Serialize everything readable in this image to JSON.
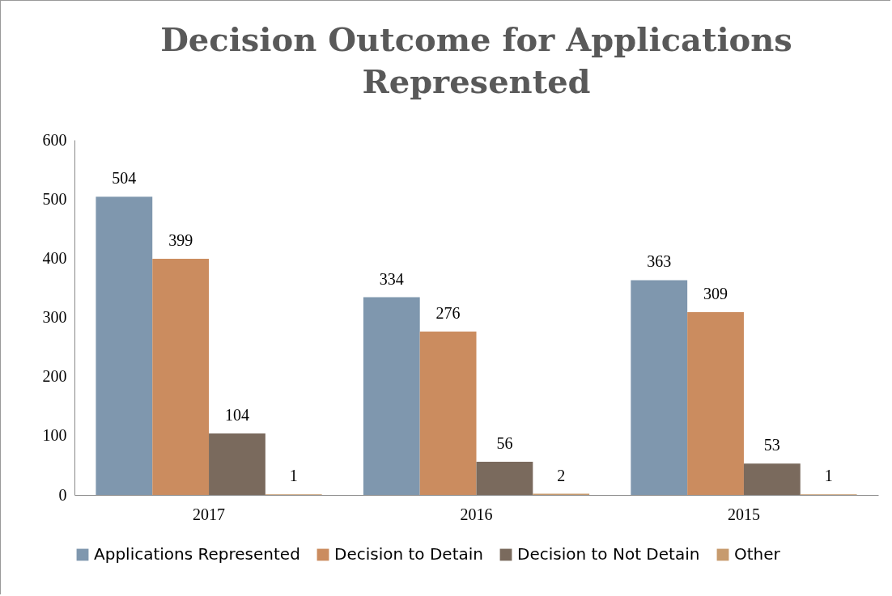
{
  "chart_data": {
    "type": "bar",
    "title": "Decision Outcome for Applications Represented",
    "categories": [
      "2017",
      "2016",
      "2015"
    ],
    "series": [
      {
        "name": "Applications Represented",
        "color": "#7f97ae",
        "values": [
          504,
          334,
          363
        ]
      },
      {
        "name": "Decision to Detain",
        "color": "#cb8c5f",
        "values": [
          399,
          276,
          309
        ]
      },
      {
        "name": "Decision to Not Detain",
        "color": "#7a6a5d",
        "values": [
          104,
          56,
          53
        ]
      },
      {
        "name": "Other",
        "color": "#c79b6e",
        "values": [
          1,
          2,
          1
        ]
      }
    ],
    "ylim": [
      0,
      600
    ],
    "yticks": [
      0,
      100,
      200,
      300,
      400,
      500,
      600
    ],
    "grid": false,
    "legend": "bottom",
    "data_labels": true
  }
}
